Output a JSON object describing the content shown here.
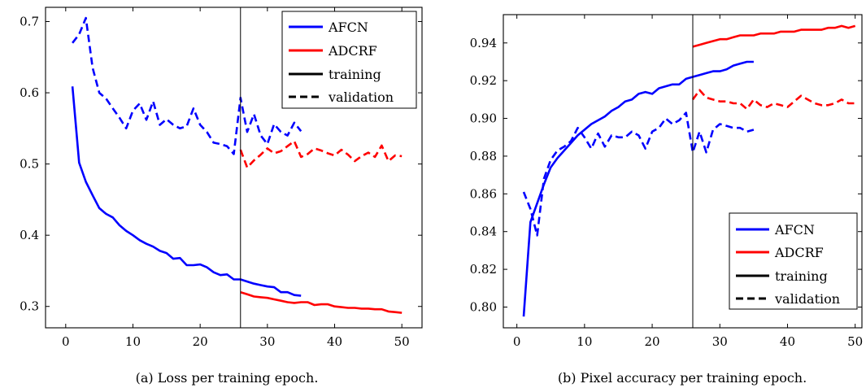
{
  "chart_data": [
    {
      "type": "line",
      "caption": "(a) Loss per training epoch.",
      "xlim": [
        -3,
        53
      ],
      "ylim": [
        0.27,
        0.72
      ],
      "xticks": [
        0,
        10,
        20,
        30,
        40,
        50
      ],
      "yticks": [
        0.3,
        0.4,
        0.5,
        0.6,
        0.7
      ],
      "ytick_labels": [
        "0.3",
        "0.4",
        "0.5",
        "0.6",
        "0.7"
      ],
      "grid": false,
      "legend_position": "top-right",
      "legend": [
        {
          "label": "AFCN",
          "color": "#0000ff",
          "style": "solid"
        },
        {
          "label": "ADCRF",
          "color": "#ff0000",
          "style": "solid"
        },
        {
          "label": "training",
          "color": "#000000",
          "style": "solid"
        },
        {
          "label": "validation",
          "color": "#000000",
          "style": "dashed"
        }
      ],
      "vline_x": 26,
      "series": [
        {
          "model": "AFCN",
          "split": "training",
          "color": "#0000ff",
          "dash": false,
          "x": [
            1,
            2,
            3,
            4,
            5,
            6,
            7,
            8,
            9,
            10,
            11,
            12,
            13,
            14,
            15,
            16,
            17,
            18,
            19,
            20,
            21,
            22,
            23,
            24,
            25,
            26,
            27,
            28,
            29,
            30,
            31,
            32,
            33,
            34,
            35
          ],
          "y": [
            0.609,
            0.502,
            0.475,
            0.456,
            0.438,
            0.43,
            0.425,
            0.414,
            0.406,
            0.4,
            0.393,
            0.388,
            0.384,
            0.378,
            0.375,
            0.367,
            0.368,
            0.358,
            0.358,
            0.359,
            0.355,
            0.348,
            0.344,
            0.345,
            0.338,
            0.338,
            0.335,
            0.332,
            0.33,
            0.328,
            0.327,
            0.32,
            0.32,
            0.316,
            0.315
          ]
        },
        {
          "model": "AFCN",
          "split": "validation",
          "color": "#0000ff",
          "dash": true,
          "x": [
            1,
            2,
            3,
            4,
            5,
            6,
            7,
            8,
            9,
            10,
            11,
            12,
            13,
            14,
            15,
            16,
            17,
            18,
            19,
            20,
            21,
            22,
            23,
            24,
            25,
            26,
            27,
            28,
            29,
            30,
            31,
            32,
            33,
            34,
            35
          ],
          "y": [
            0.67,
            0.682,
            0.705,
            0.635,
            0.6,
            0.592,
            0.578,
            0.565,
            0.55,
            0.575,
            0.585,
            0.562,
            0.588,
            0.555,
            0.563,
            0.555,
            0.55,
            0.553,
            0.578,
            0.555,
            0.545,
            0.53,
            0.528,
            0.525,
            0.514,
            0.593,
            0.545,
            0.57,
            0.54,
            0.528,
            0.556,
            0.545,
            0.54,
            0.558,
            0.546
          ]
        },
        {
          "model": "ADCRF",
          "split": "training",
          "color": "#ff0000",
          "dash": false,
          "x": [
            26,
            27,
            28,
            29,
            30,
            31,
            32,
            33,
            34,
            35,
            36,
            37,
            38,
            39,
            40,
            41,
            42,
            43,
            44,
            45,
            46,
            47,
            48,
            49,
            50
          ],
          "y": [
            0.32,
            0.317,
            0.314,
            0.313,
            0.312,
            0.31,
            0.308,
            0.306,
            0.305,
            0.306,
            0.306,
            0.302,
            0.303,
            0.303,
            0.3,
            0.299,
            0.298,
            0.298,
            0.297,
            0.297,
            0.296,
            0.296,
            0.293,
            0.292,
            0.291
          ]
        },
        {
          "model": "ADCRF",
          "split": "validation",
          "color": "#ff0000",
          "dash": true,
          "x": [
            26,
            27,
            28,
            29,
            30,
            31,
            32,
            33,
            34,
            35,
            36,
            37,
            38,
            39,
            40,
            41,
            42,
            43,
            44,
            45,
            46,
            47,
            48,
            49,
            50
          ],
          "y": [
            0.52,
            0.495,
            0.505,
            0.513,
            0.522,
            0.515,
            0.518,
            0.525,
            0.532,
            0.51,
            0.514,
            0.522,
            0.519,
            0.515,
            0.512,
            0.52,
            0.513,
            0.504,
            0.511,
            0.516,
            0.51,
            0.526,
            0.504,
            0.512,
            0.511
          ]
        }
      ]
    },
    {
      "type": "line",
      "caption": "(b) Pixel accuracy per training epoch.",
      "xlim": [
        -2,
        51
      ],
      "ylim": [
        0.789,
        0.955
      ],
      "xticks": [
        0,
        10,
        20,
        30,
        40,
        50
      ],
      "yticks": [
        0.8,
        0.82,
        0.84,
        0.86,
        0.88,
        0.9,
        0.92,
        0.94
      ],
      "ytick_labels": [
        "0.80",
        "0.82",
        "0.84",
        "0.86",
        "0.88",
        "0.90",
        "0.92",
        "0.94"
      ],
      "grid": false,
      "legend_position": "bottom-right",
      "legend": [
        {
          "label": "AFCN",
          "color": "#0000ff",
          "style": "solid"
        },
        {
          "label": "ADCRF",
          "color": "#ff0000",
          "style": "solid"
        },
        {
          "label": "training",
          "color": "#000000",
          "style": "solid"
        },
        {
          "label": "validation",
          "color": "#000000",
          "style": "dashed"
        }
      ],
      "vline_x": 26,
      "series": [
        {
          "model": "AFCN",
          "split": "training",
          "color": "#0000ff",
          "dash": false,
          "x": [
            1,
            2,
            3,
            4,
            5,
            6,
            7,
            8,
            9,
            10,
            11,
            12,
            13,
            14,
            15,
            16,
            17,
            18,
            19,
            20,
            21,
            22,
            23,
            24,
            25,
            26,
            27,
            28,
            29,
            30,
            31,
            32,
            33,
            34,
            35
          ],
          "y": [
            0.795,
            0.845,
            0.855,
            0.865,
            0.874,
            0.879,
            0.883,
            0.887,
            0.891,
            0.894,
            0.897,
            0.899,
            0.901,
            0.904,
            0.906,
            0.909,
            0.91,
            0.913,
            0.914,
            0.913,
            0.916,
            0.917,
            0.918,
            0.918,
            0.921,
            0.922,
            0.923,
            0.924,
            0.925,
            0.925,
            0.926,
            0.928,
            0.929,
            0.93,
            0.93
          ]
        },
        {
          "model": "AFCN",
          "split": "validation",
          "color": "#0000ff",
          "dash": true,
          "x": [
            1,
            2,
            3,
            4,
            5,
            6,
            7,
            8,
            9,
            10,
            11,
            12,
            13,
            14,
            15,
            16,
            17,
            18,
            19,
            20,
            21,
            22,
            23,
            24,
            25,
            26,
            27,
            28,
            29,
            30,
            31,
            32,
            33,
            34,
            35
          ],
          "y": [
            0.861,
            0.852,
            0.838,
            0.868,
            0.878,
            0.883,
            0.885,
            0.888,
            0.895,
            0.89,
            0.884,
            0.892,
            0.885,
            0.891,
            0.89,
            0.89,
            0.893,
            0.891,
            0.884,
            0.893,
            0.895,
            0.9,
            0.897,
            0.899,
            0.903,
            0.882,
            0.893,
            0.882,
            0.894,
            0.897,
            0.896,
            0.895,
            0.895,
            0.893,
            0.894
          ]
        },
        {
          "model": "ADCRF",
          "split": "training",
          "color": "#ff0000",
          "dash": false,
          "x": [
            26,
            27,
            28,
            29,
            30,
            31,
            32,
            33,
            34,
            35,
            36,
            37,
            38,
            39,
            40,
            41,
            42,
            43,
            44,
            45,
            46,
            47,
            48,
            49,
            50
          ],
          "y": [
            0.938,
            0.939,
            0.94,
            0.941,
            0.942,
            0.942,
            0.943,
            0.944,
            0.944,
            0.944,
            0.945,
            0.945,
            0.945,
            0.946,
            0.946,
            0.946,
            0.947,
            0.947,
            0.947,
            0.947,
            0.948,
            0.948,
            0.949,
            0.948,
            0.949
          ]
        },
        {
          "model": "ADCRF",
          "split": "validation",
          "color": "#ff0000",
          "dash": true,
          "x": [
            26,
            27,
            28,
            29,
            30,
            31,
            32,
            33,
            34,
            35,
            36,
            37,
            38,
            39,
            40,
            41,
            42,
            43,
            44,
            45,
            46,
            47,
            48,
            49,
            50
          ],
          "y": [
            0.91,
            0.915,
            0.911,
            0.91,
            0.909,
            0.909,
            0.908,
            0.908,
            0.905,
            0.91,
            0.907,
            0.906,
            0.908,
            0.907,
            0.906,
            0.909,
            0.912,
            0.91,
            0.908,
            0.907,
            0.907,
            0.908,
            0.91,
            0.908,
            0.908
          ]
        }
      ]
    }
  ]
}
